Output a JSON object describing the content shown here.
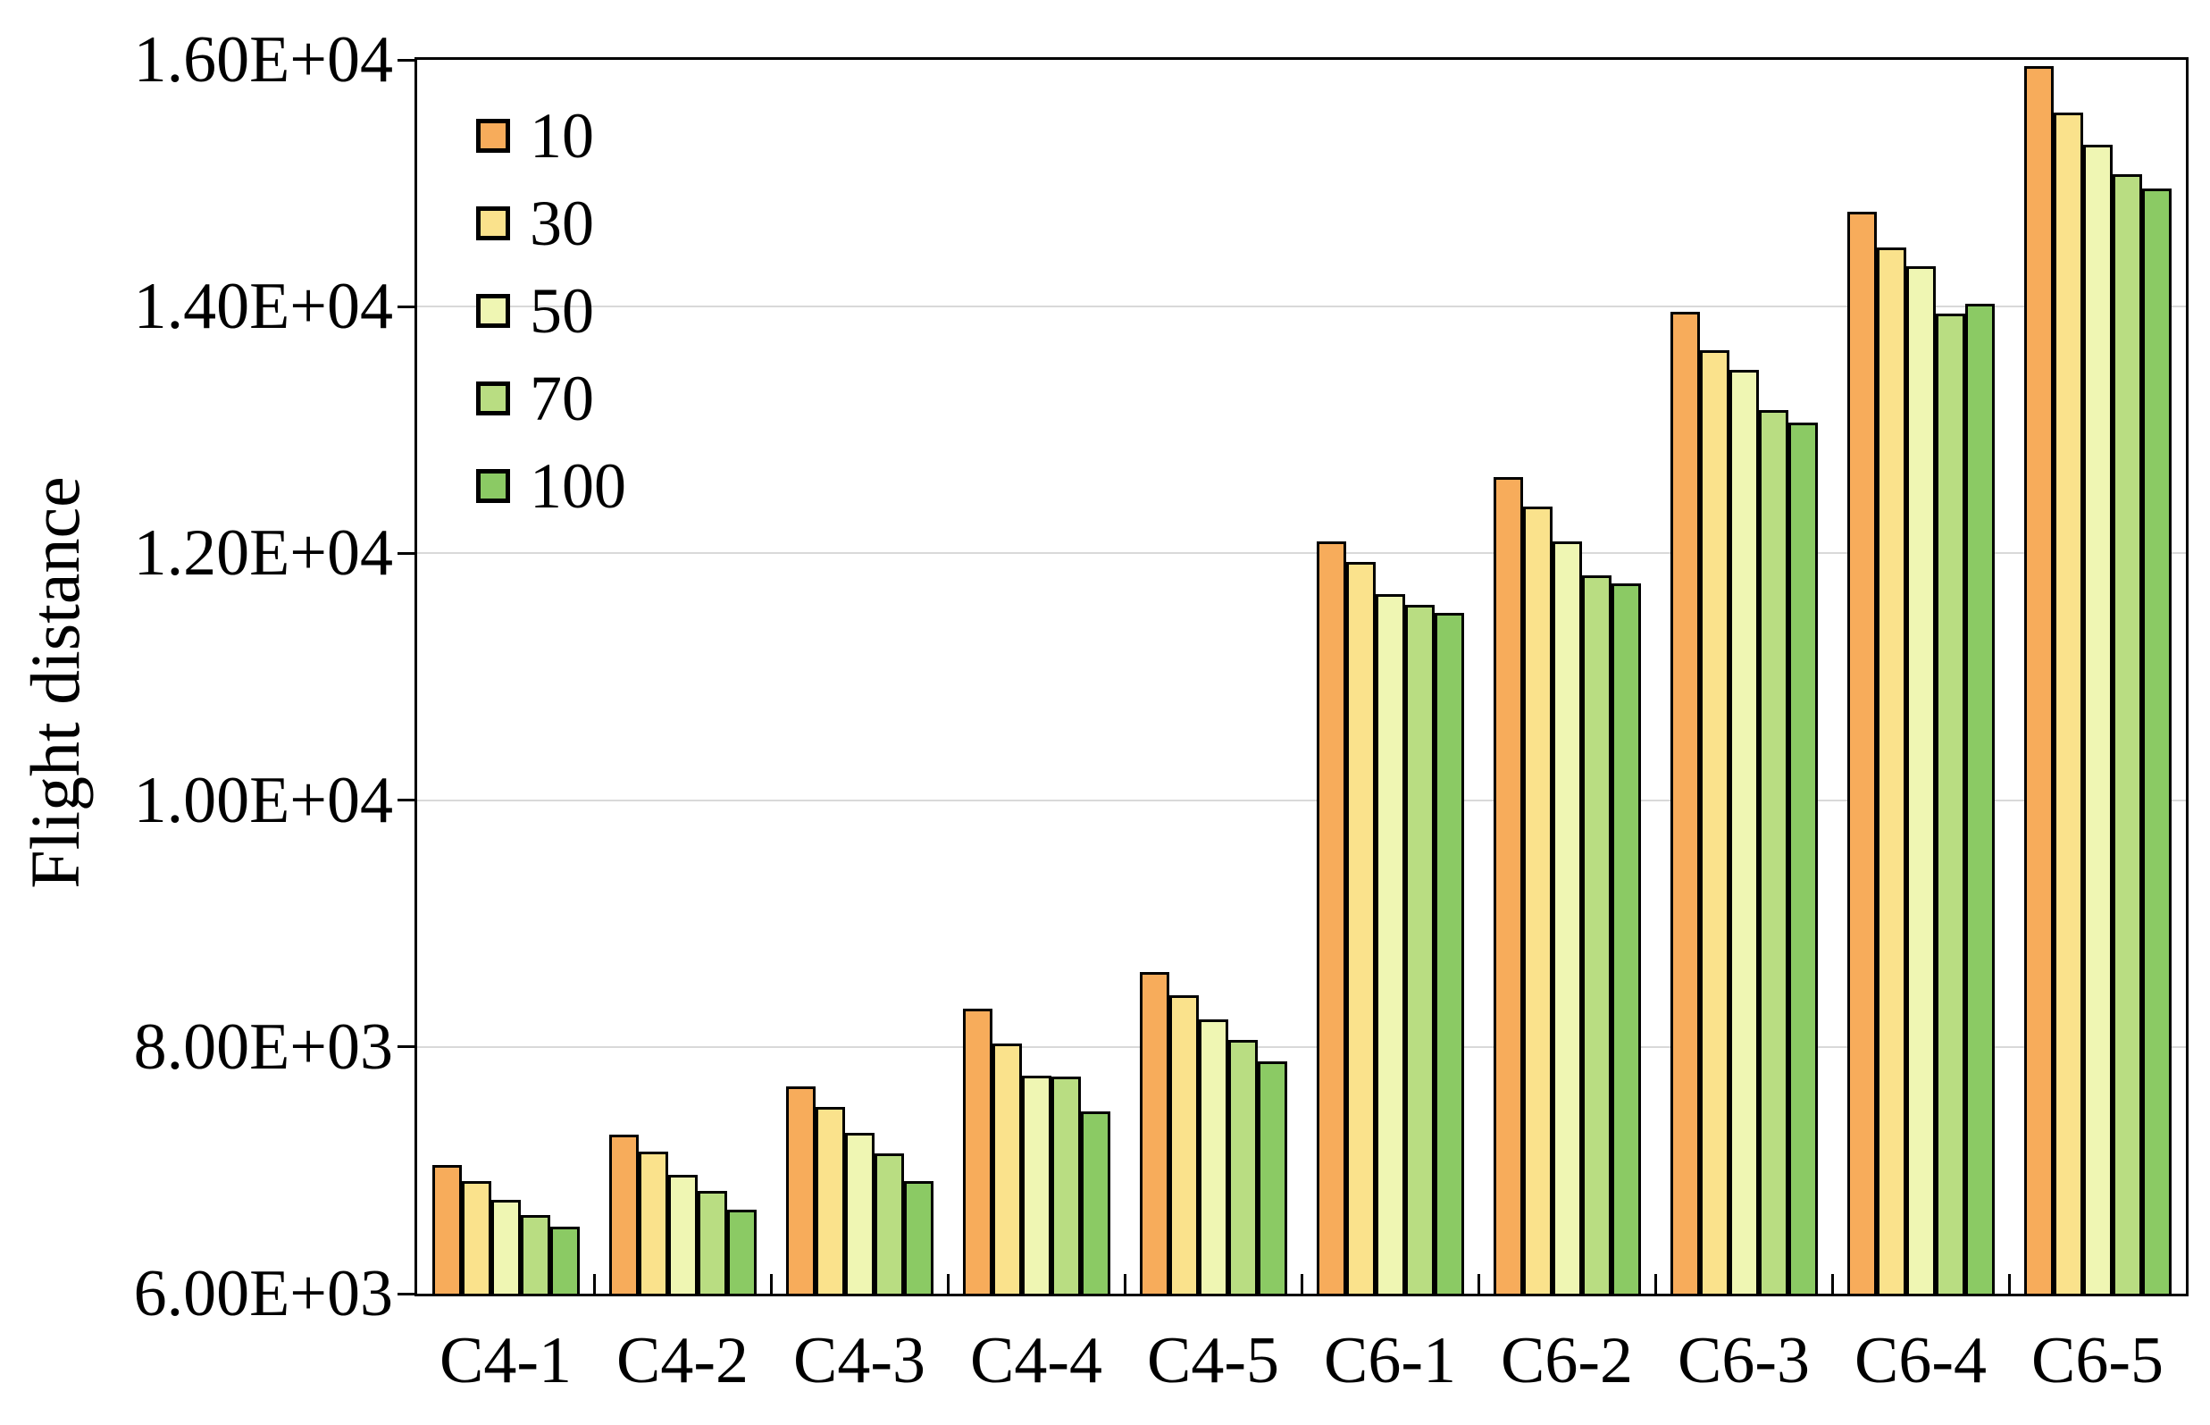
{
  "chart_data": {
    "type": "bar",
    "title": "",
    "xlabel": "",
    "ylabel": "Flight distance",
    "categories": [
      "C4-1",
      "C4-2",
      "C4-3",
      "C4-4",
      "C4-5",
      "C6-1",
      "C6-2",
      "C6-3",
      "C6-4",
      "C6-5"
    ],
    "series": [
      {
        "name": "10",
        "color": "#F7AC5B",
        "values": [
          7040,
          7290,
          7680,
          8310,
          8610,
          12100,
          12620,
          13960,
          14770,
          15950
        ]
      },
      {
        "name": "30",
        "color": "#FAE28C",
        "values": [
          6910,
          7150,
          7510,
          8030,
          8420,
          11930,
          12380,
          13650,
          14480,
          15570
        ]
      },
      {
        "name": "50",
        "color": "#EFF6B3",
        "values": [
          6760,
          6960,
          7300,
          7770,
          8220,
          11670,
          12100,
          13490,
          14330,
          15310
        ]
      },
      {
        "name": "70",
        "color": "#B9DD82",
        "values": [
          6640,
          6830,
          7140,
          7760,
          8060,
          11580,
          11820,
          13160,
          13940,
          15070
        ]
      },
      {
        "name": "100",
        "color": "#8BCA64",
        "values": [
          6540,
          6680,
          6910,
          7480,
          7880,
          11520,
          11760,
          13060,
          14020,
          14960
        ]
      }
    ],
    "ylim": [
      6000,
      16000
    ],
    "ytick_step": 2000,
    "ytick_labels": [
      "6.00E+03",
      "8.00E+03",
      "1.00E+04",
      "1.20E+04",
      "1.40E+04",
      "1.60E+04"
    ],
    "grid": true,
    "legend_position": "top-left-inside",
    "axis_color": "#000000",
    "gridline_color": "#d9d9d9"
  }
}
